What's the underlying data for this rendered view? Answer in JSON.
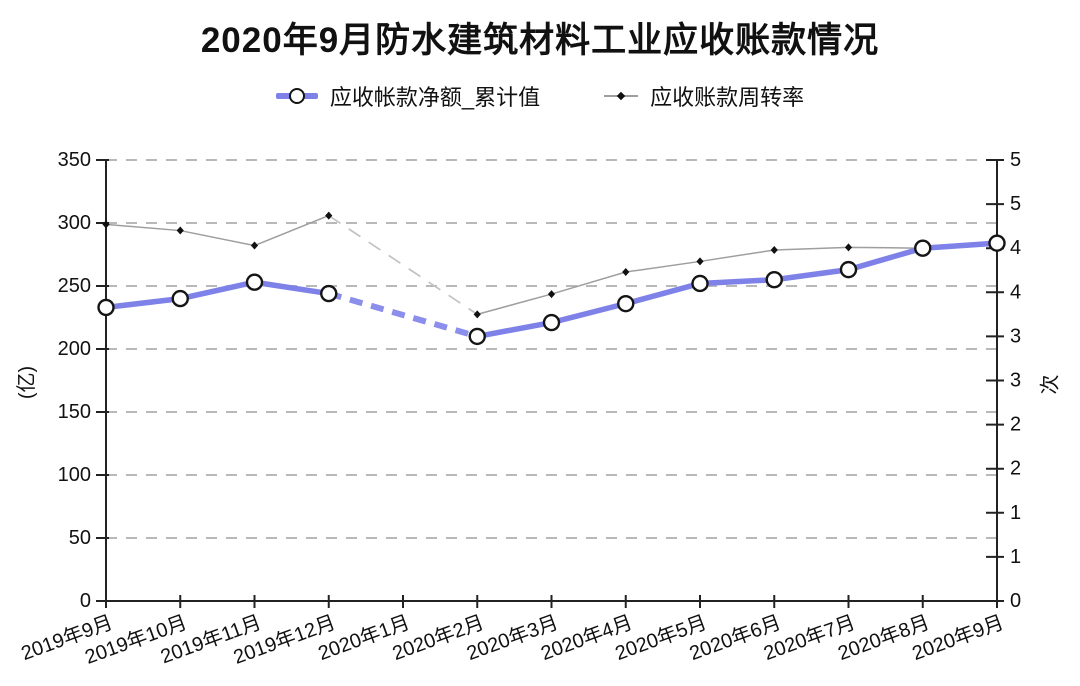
{
  "chart_data": {
    "type": "line",
    "title": "2020年9月防水建筑材料工业应收账款情况",
    "categories": [
      "2019年9月",
      "2019年10月",
      "2019年11月",
      "2019年12月",
      "2020年1月",
      "2020年2月",
      "2020年3月",
      "2020年4月",
      "2020年5月",
      "2020年6月",
      "2020年7月",
      "2020年8月",
      "2020年9月"
    ],
    "series": [
      {
        "name": "应收帐款净额_累计值",
        "axis": "left",
        "unit": "亿",
        "color": "#7e82e8",
        "marker": "open-circle",
        "line_style": "thick-solid-with-dashed-gap",
        "values": [
          233,
          240,
          253,
          244,
          null,
          210,
          221,
          236,
          252,
          255,
          263,
          280,
          284
        ]
      },
      {
        "name": "应收账款周转率",
        "axis": "right",
        "unit": "次",
        "color": "#9e9e9e",
        "marker": "filled-diamond",
        "line_style": "thin-solid-with-dashed-gap",
        "values": [
          4.27,
          4.2,
          4.03,
          4.37,
          null,
          3.25,
          3.48,
          3.73,
          3.85,
          3.98,
          4.01,
          4.0,
          4.08
        ]
      }
    ],
    "left_axis": {
      "label": "(亿)",
      "min": 0,
      "max": 350,
      "tick_step": 50,
      "tick_labels": [
        "0",
        "50",
        "100",
        "150",
        "200",
        "250",
        "300",
        "350"
      ]
    },
    "right_axis": {
      "label": "次",
      "min": 0,
      "max": 5,
      "tick_step": 0.5,
      "tick_labels": [
        "0",
        "1",
        "1",
        "2",
        "2",
        "3",
        "3",
        "4",
        "4",
        "5",
        "5"
      ]
    },
    "x_axis": {
      "tick_rotation_deg": -20
    },
    "grid": {
      "horizontal": true,
      "style": "dashed",
      "color": "#b8b8b8"
    },
    "legend_position": "top-center"
  }
}
